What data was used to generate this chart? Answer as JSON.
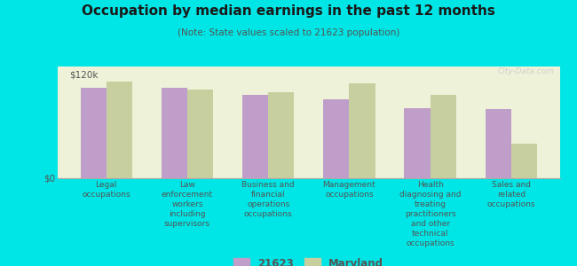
{
  "title": "Occupation by median earnings in the past 12 months",
  "subtitle": "(Note: State values scaled to 21623 population)",
  "categories": [
    "Legal\noccupations",
    "Law\nenforcement\nworkers\nincluding\nsupervisors",
    "Business and\nfinancial\noperations\noccupations",
    "Management\noccupations",
    "Health\ndiagnosing and\ntreating\npractitioners\nand other\ntechnical\noccupations",
    "Sales and\nrelated\noccupations"
  ],
  "values_21623": [
    105000,
    105000,
    97000,
    92000,
    82000,
    80000
  ],
  "values_maryland": [
    112000,
    103000,
    100000,
    110000,
    97000,
    40000
  ],
  "color_21623": "#bf9fca",
  "color_maryland": "#c8cf9f",
  "background_outer": "#00e5e5",
  "background_plot": "#eef2d8",
  "ylim": [
    0,
    130000
  ],
  "ytick_vals": [
    0,
    120000
  ],
  "ytick_labels": [
    "$0",
    "$120k"
  ],
  "bar_width": 0.32,
  "legend_label_21623": "21623",
  "legend_label_maryland": "Maryland",
  "watermark": "City-Data.com",
  "title_fontsize": 11,
  "subtitle_fontsize": 7.5,
  "xlabel_fontsize": 6.5
}
